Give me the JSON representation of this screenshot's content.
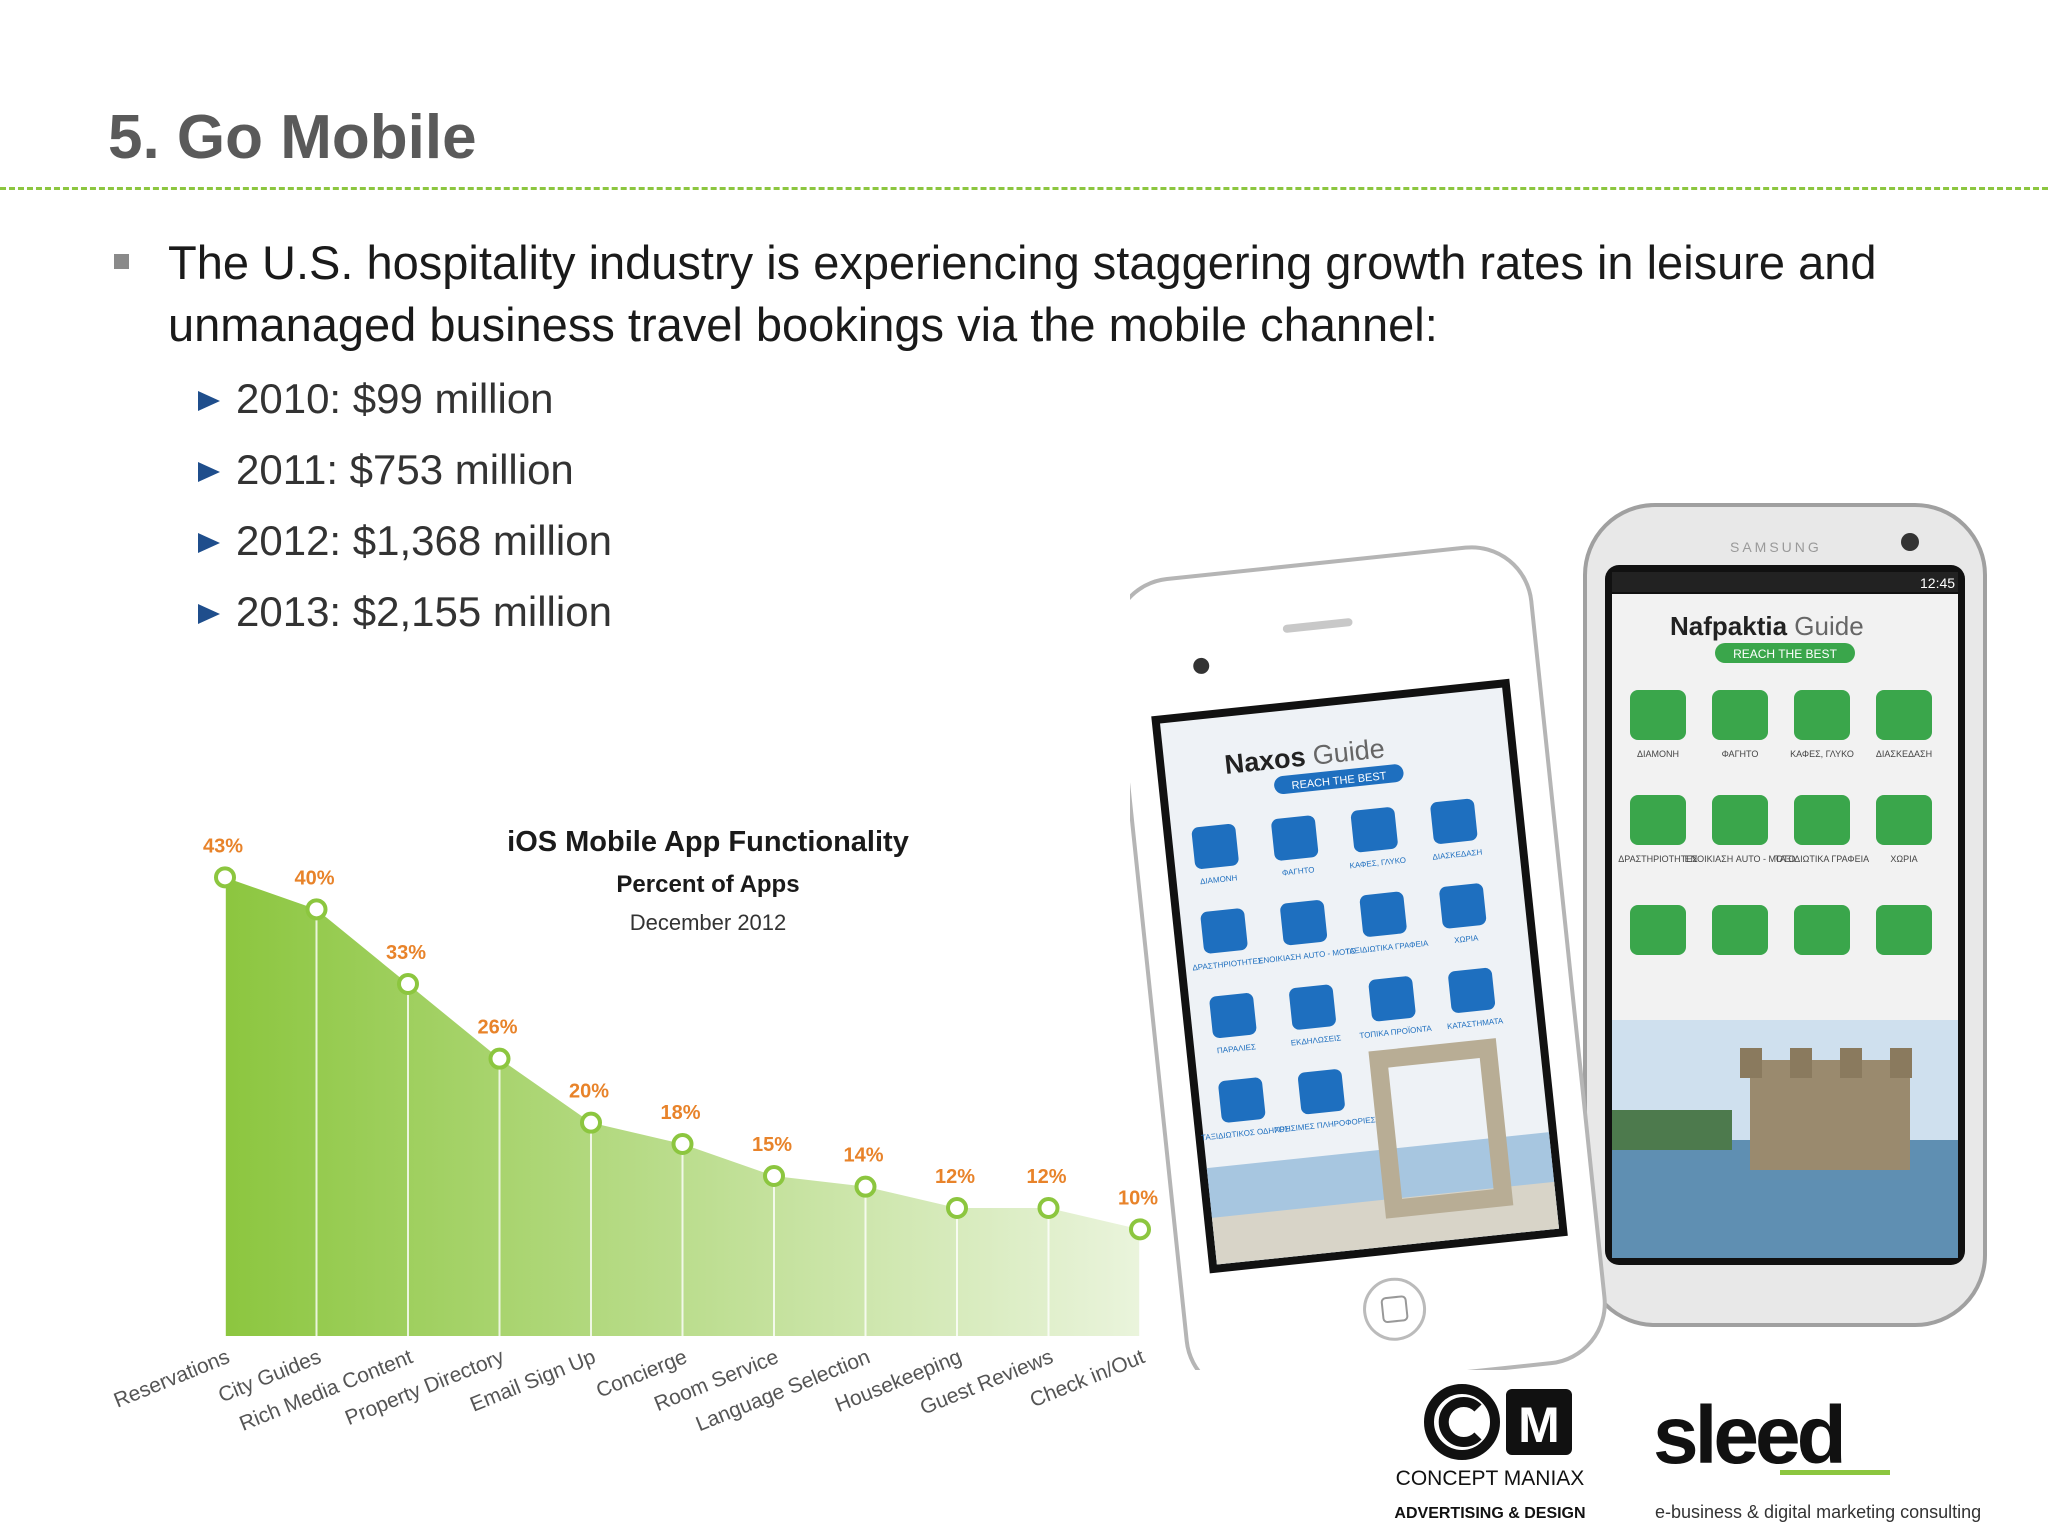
{
  "slide": {
    "title": "5. Go Mobile",
    "bullet": "The U.S. hospitality industry is experiencing staggering growth rates in leisure and unmanaged business travel bookings via the mobile channel:",
    "sub_bullets": [
      "2010: $99 million",
      "2011: $753 million",
      "2012: $1,368 million",
      "2013: $2,155 million"
    ]
  },
  "colors": {
    "accent": "#8cc63f",
    "title": "#5a5a5a",
    "label_orange": "#e8832a",
    "bullet_arrow": "#1f4e8c"
  },
  "chart_data": {
    "type": "area",
    "title": "iOS Mobile App Functionality",
    "subtitle": "Percent of Apps",
    "date": "December 2012",
    "categories": [
      "Reservations",
      "City Guides",
      "Rich Media Content",
      "Property Directory",
      "Email Sign Up",
      "Concierge",
      "Room Service",
      "Language Selection",
      "Housekeeping",
      "Guest Reviews",
      "Check in/Out"
    ],
    "values": [
      43,
      40,
      33,
      26,
      20,
      18,
      15,
      14,
      12,
      12,
      10
    ],
    "value_labels": [
      "43%",
      "40%",
      "33%",
      "26%",
      "20%",
      "18%",
      "15%",
      "14%",
      "12%",
      "12%",
      "10%"
    ],
    "ylim": [
      0,
      45
    ],
    "grid": false
  },
  "phones": {
    "iphone": {
      "app_name": "Naxos",
      "app_suffix": "Guide",
      "tagline": "REACH THE BEST",
      "menu": [
        "ΔΙΑΜΟΝΗ",
        "ΦΑΓΗΤΟ",
        "ΚΑΦΕΣ, ΓΛΥΚΟ",
        "ΔΙΑΣΚΕΔΑΣΗ",
        "ΔΡΑΣΤΗΡΙΟΤΗΤΕΣ",
        "ΕΝΟΙΚΙΑΣΗ AUTO - MOTO",
        "ΤΑΞΙΔΙΩΤΙΚΑ ΓΡΑΦΕΙΑ",
        "ΧΩΡΙΑ",
        "ΠΑΡΑΛΙΕΣ",
        "ΕΚΔΗΛΩΣΕΙΣ",
        "ΤΟΠΙΚΑ ΠΡΟΪΟΝΤΑ",
        "ΚΑΤΑΣΤΗΜΑΤΑ",
        "ΤΑΞΙΔΙΩΤΙΚΟΣ ΟΔΗΓΟΣ",
        "ΧΡΗΣΙΜΕΣ ΠΛΗΡΟΦΟΡΙΕΣ"
      ]
    },
    "samsung": {
      "brand": "SAMSUNG",
      "status_time": "12:45",
      "app_name": "Nafpaktia",
      "app_suffix": "Guide",
      "tagline": "REACH THE BEST",
      "menu": [
        "ΔΙΑΜΟΝΗ",
        "ΦΑΓΗΤΟ",
        "ΚΑΦΕΣ, ΓΛΥΚΟ",
        "ΔΙΑΣΚΕΔΑΣΗ",
        "ΔΡΑΣΤΗΡΙΟΤΗΤΕΣ",
        "ΕΝΟΙΚΙΑΣΗ AUTO - MOTO",
        "ΤΑΞΙΔΙΩΤΙΚΑ ΓΡΑΦΕΙΑ",
        "ΧΩΡΙΑ"
      ]
    }
  },
  "logos": {
    "cm_name": "CONCEPT MANIAX",
    "cm_tag": "ADVERTISING & DESIGN",
    "sleed_name": "sleed",
    "sleed_tag": "e-business & digital marketing consulting"
  }
}
